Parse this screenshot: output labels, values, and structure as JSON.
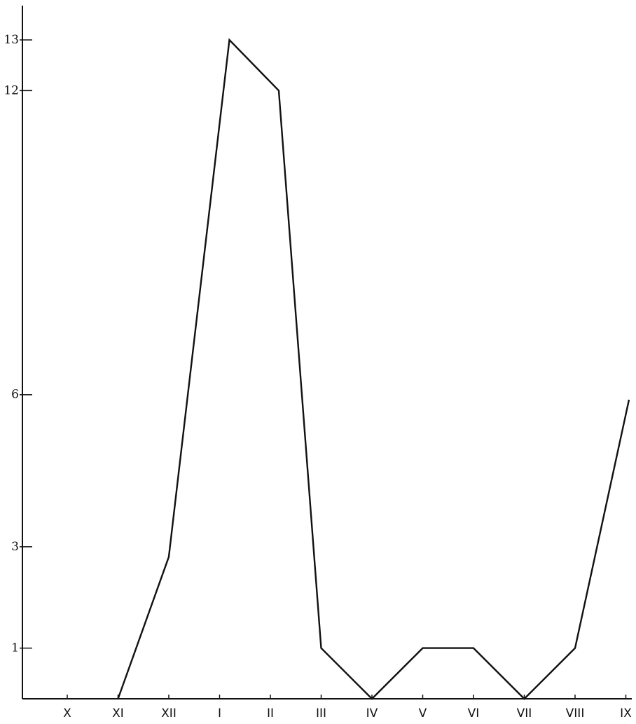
{
  "chart_data": {
    "type": "line",
    "title": "",
    "xlabel": "",
    "ylabel": "",
    "categories": [
      "X",
      "XI",
      "XII",
      "I",
      "II",
      "III",
      "IV",
      "V",
      "VI",
      "VII",
      "VIII",
      "IX"
    ],
    "y_ticks": [
      1,
      3,
      6,
      12,
      13
    ],
    "ylim": [
      0,
      14
    ],
    "grid": false,
    "legend": "none",
    "series": [
      {
        "points": [
          {
            "x": "XI",
            "y": 0
          },
          {
            "x": "XII",
            "y": 2.8
          },
          {
            "x": "I",
            "y": 13
          },
          {
            "x": "II",
            "y": 12
          },
          {
            "x": "III",
            "y": 1
          },
          {
            "x": "IV",
            "y": 0
          },
          {
            "x": "V",
            "y": 1
          },
          {
            "x": "VI",
            "y": 1
          },
          {
            "x": "VII",
            "y": 0
          },
          {
            "x": "VIII",
            "y": 1
          },
          {
            "x": "IX",
            "y": 5.9
          }
        ]
      }
    ],
    "colors": {
      "line": "#111111",
      "axis": "#111111"
    }
  }
}
